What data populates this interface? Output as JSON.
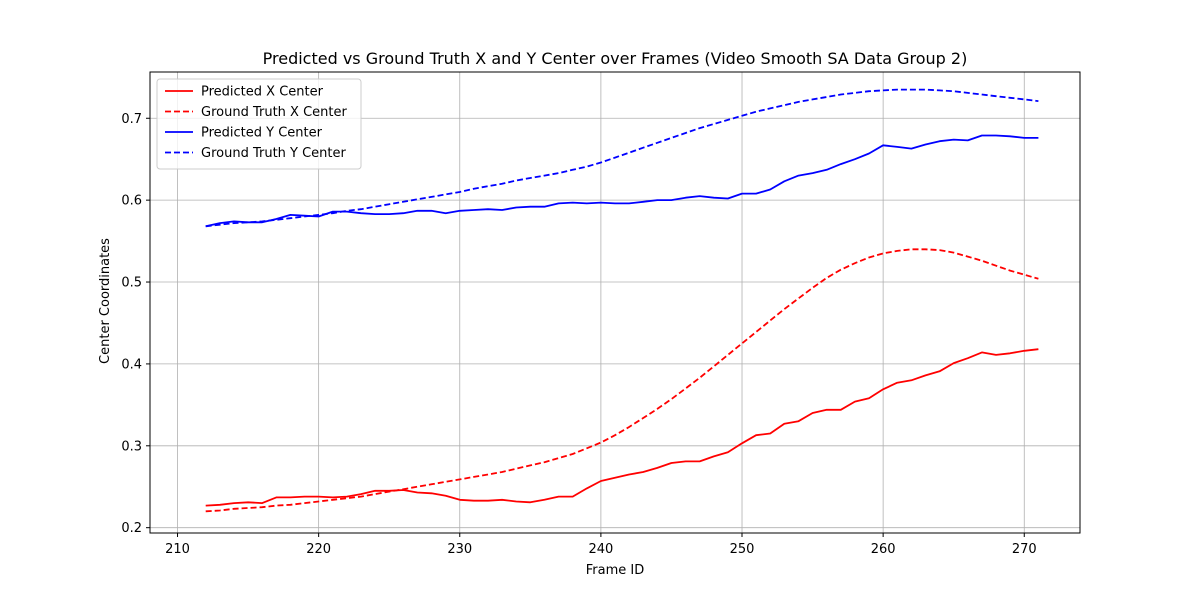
{
  "chart_data": {
    "type": "line",
    "title": "Predicted vs Ground Truth X and Y Center over Frames (Video Smooth SA Data Group 2)",
    "xlabel": "Frame ID",
    "ylabel": "Center Coordinates",
    "xlim": [
      208.05,
      273.95
    ],
    "ylim": [
      0.1935,
      0.7565
    ],
    "xticks": [
      210,
      220,
      230,
      240,
      250,
      260,
      270
    ],
    "yticks": [
      0.2,
      0.3,
      0.4,
      0.5,
      0.6,
      0.7
    ],
    "xtick_labels": [
      "210",
      "220",
      "230",
      "240",
      "250",
      "260",
      "270"
    ],
    "ytick_labels": [
      "0.2",
      "0.3",
      "0.4",
      "0.5",
      "0.6",
      "0.7"
    ],
    "grid": true,
    "legend_position": "upper-left",
    "x": [
      212,
      213,
      214,
      215,
      216,
      217,
      218,
      219,
      220,
      221,
      222,
      223,
      224,
      225,
      226,
      227,
      228,
      229,
      230,
      231,
      232,
      233,
      234,
      235,
      236,
      237,
      238,
      239,
      240,
      241,
      242,
      243,
      244,
      245,
      246,
      247,
      248,
      249,
      250,
      251,
      252,
      253,
      254,
      255,
      256,
      257,
      258,
      259,
      260,
      261,
      262,
      263,
      264,
      265,
      266,
      267,
      268,
      269,
      270,
      271
    ],
    "series": [
      {
        "name": "Predicted X Center",
        "color": "#ff0000",
        "dash": "solid",
        "values": [
          0.227,
          0.228,
          0.23,
          0.231,
          0.23,
          0.237,
          0.237,
          0.238,
          0.238,
          0.237,
          0.238,
          0.241,
          0.245,
          0.245,
          0.246,
          0.243,
          0.242,
          0.239,
          0.234,
          0.233,
          0.233,
          0.234,
          0.232,
          0.231,
          0.234,
          0.238,
          0.238,
          0.248,
          0.257,
          0.261,
          0.265,
          0.268,
          0.273,
          0.279,
          0.281,
          0.281,
          0.287,
          0.292,
          0.303,
          0.313,
          0.315,
          0.327,
          0.33,
          0.34,
          0.344,
          0.344,
          0.354,
          0.358,
          0.369,
          0.377,
          0.38,
          0.386,
          0.391,
          0.401,
          0.407,
          0.414,
          0.411,
          0.413,
          0.416,
          0.418
        ]
      },
      {
        "name": "Ground Truth X Center",
        "color": "#ff0000",
        "dash": "dashed",
        "values": [
          0.22,
          0.221,
          0.223,
          0.224,
          0.225,
          0.227,
          0.228,
          0.23,
          0.232,
          0.234,
          0.236,
          0.238,
          0.241,
          0.244,
          0.247,
          0.25,
          0.253,
          0.256,
          0.259,
          0.262,
          0.265,
          0.268,
          0.272,
          0.276,
          0.28,
          0.285,
          0.29,
          0.297,
          0.304,
          0.313,
          0.323,
          0.334,
          0.345,
          0.357,
          0.37,
          0.383,
          0.397,
          0.411,
          0.425,
          0.439,
          0.453,
          0.467,
          0.48,
          0.493,
          0.505,
          0.515,
          0.523,
          0.53,
          0.535,
          0.538,
          0.54,
          0.54,
          0.539,
          0.536,
          0.531,
          0.526,
          0.52,
          0.514,
          0.509,
          0.504
        ]
      },
      {
        "name": "Predicted Y Center",
        "color": "#0000ff",
        "dash": "solid",
        "values": [
          0.568,
          0.572,
          0.574,
          0.573,
          0.573,
          0.577,
          0.582,
          0.581,
          0.58,
          0.586,
          0.586,
          0.584,
          0.583,
          0.583,
          0.584,
          0.587,
          0.587,
          0.584,
          0.587,
          0.588,
          0.589,
          0.588,
          0.591,
          0.592,
          0.592,
          0.596,
          0.597,
          0.596,
          0.597,
          0.596,
          0.596,
          0.598,
          0.6,
          0.6,
          0.603,
          0.605,
          0.603,
          0.602,
          0.608,
          0.608,
          0.613,
          0.623,
          0.63,
          0.633,
          0.637,
          0.644,
          0.65,
          0.657,
          0.667,
          0.665,
          0.663,
          0.668,
          0.672,
          0.674,
          0.673,
          0.679,
          0.679,
          0.678,
          0.676,
          0.676
        ]
      },
      {
        "name": "Ground Truth Y Center",
        "color": "#0000ff",
        "dash": "dashed",
        "values": [
          0.568,
          0.57,
          0.572,
          0.573,
          0.574,
          0.576,
          0.578,
          0.58,
          0.582,
          0.584,
          0.587,
          0.589,
          0.592,
          0.595,
          0.598,
          0.601,
          0.604,
          0.607,
          0.61,
          0.614,
          0.617,
          0.62,
          0.624,
          0.627,
          0.63,
          0.633,
          0.637,
          0.641,
          0.646,
          0.652,
          0.658,
          0.664,
          0.67,
          0.676,
          0.682,
          0.688,
          0.693,
          0.698,
          0.703,
          0.708,
          0.712,
          0.716,
          0.72,
          0.723,
          0.726,
          0.729,
          0.731,
          0.733,
          0.734,
          0.735,
          0.735,
          0.735,
          0.734,
          0.733,
          0.731,
          0.729,
          0.727,
          0.725,
          0.723,
          0.721
        ]
      }
    ]
  }
}
